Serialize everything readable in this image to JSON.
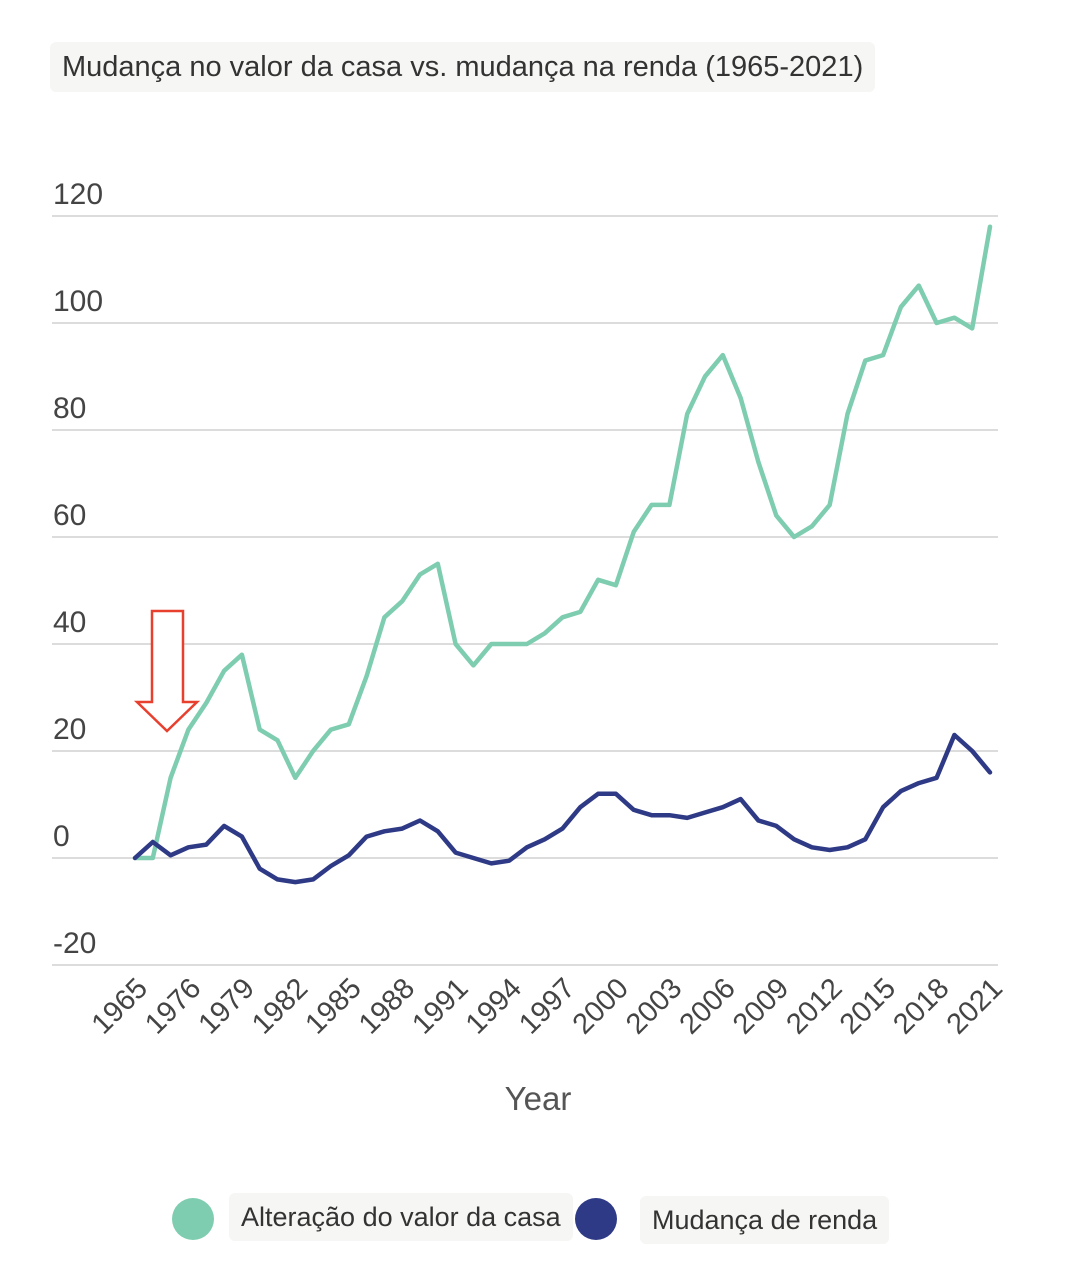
{
  "chart_data": {
    "type": "line",
    "title": "Mudança no valor da casa vs. mudança na renda (1965-2021)",
    "xlabel": "Year",
    "ylabel": "",
    "ylim": [
      -20,
      120
    ],
    "yticks": [
      "120",
      "100",
      "80",
      "60",
      "40",
      "20",
      "0",
      "-20"
    ],
    "ytick_values": [
      120,
      100,
      80,
      60,
      40,
      20,
      0,
      -20
    ],
    "x_tick_labels": [
      "1965",
      "1976",
      "1979",
      "1982",
      "1985",
      "1988",
      "1991",
      "1994",
      "1997",
      "2000",
      "2003",
      "2006",
      "2009",
      "2012",
      "2015",
      "2018",
      "2021"
    ],
    "x_tick_index": [
      0,
      3,
      6,
      9,
      12,
      15,
      18,
      21,
      24,
      27,
      30,
      33,
      36,
      39,
      42,
      45,
      48
    ],
    "x": [
      "1965",
      "1974",
      "1975",
      "1976",
      "1977",
      "1978",
      "1979",
      "1980",
      "1981",
      "1982",
      "1983",
      "1984",
      "1985",
      "1986",
      "1987",
      "1988",
      "1989",
      "1990",
      "1991",
      "1992",
      "1993",
      "1994",
      "1995",
      "1996",
      "1997",
      "1998",
      "1999",
      "2000",
      "2001",
      "2002",
      "2003",
      "2004",
      "2005",
      "2006",
      "2007",
      "2008",
      "2009",
      "2010",
      "2011",
      "2012",
      "2013",
      "2014",
      "2015",
      "2016",
      "2017",
      "2018",
      "2019",
      "2020",
      "2021"
    ],
    "series": [
      {
        "name": "Alteração do valor da casa",
        "color": "#7ecdb0",
        "values": [
          0,
          0,
          15,
          24,
          29,
          35,
          38,
          24,
          22,
          15,
          20,
          24,
          25,
          34,
          45,
          48,
          53,
          55,
          40,
          36,
          40,
          40,
          40,
          42,
          45,
          46,
          52,
          51,
          61,
          66,
          66,
          83,
          90,
          94,
          86,
          74,
          64,
          60,
          62,
          66,
          83,
          93,
          94,
          103,
          107,
          100,
          101,
          99,
          118
        ]
      },
      {
        "name": "Mudança de renda",
        "color": "#2e3a85",
        "values": [
          0,
          3,
          0.5,
          2,
          2.5,
          6,
          4,
          -2,
          -4,
          -4.5,
          -4,
          -1.5,
          0.5,
          4,
          5,
          5.5,
          7,
          5,
          1,
          0,
          -1,
          -0.5,
          2,
          3.5,
          5.5,
          9.5,
          12,
          12,
          9,
          8,
          8,
          7.5,
          8.5,
          9.5,
          11,
          7,
          6,
          3.5,
          2,
          1.5,
          2,
          3.5,
          9.5,
          12.5,
          14,
          15,
          23,
          20,
          16
        ]
      }
    ]
  }
}
